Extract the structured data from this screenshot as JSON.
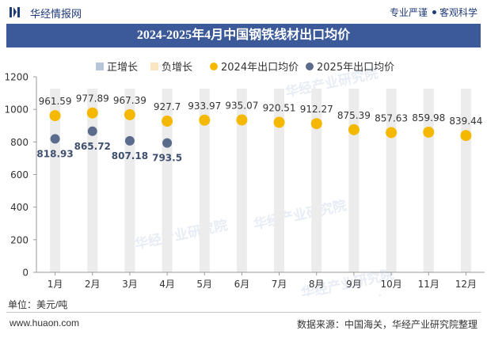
{
  "header": {
    "brand": "华经情报网",
    "tagline_left": "专业严谨",
    "tagline_right": "客观科学"
  },
  "title": "2024-2025年4月中国钢铁线材出口均价",
  "unit_label": "单位：美元/吨",
  "footer": {
    "site": "www.huaon.com",
    "source": "数据来源：中国海关，华经产业研究院整理"
  },
  "watermark": "华经产业研究院",
  "watermark_url": "www.huaon.com",
  "colors": {
    "title_bar": "#3c5a9a",
    "brand": "#1f3a78",
    "series_2024": "#f5b800",
    "series_2025": "#5b6b8c",
    "positive": "#b7c4da",
    "negative": "#fbe6c2",
    "bar_bg": "#ececec"
  },
  "chart_data": {
    "type": "scatter",
    "categories": [
      "1月",
      "2月",
      "3月",
      "4月",
      "5月",
      "6月",
      "7月",
      "8月",
      "9月",
      "10月",
      "11月",
      "12月"
    ],
    "legend": [
      {
        "key": "positive",
        "name": "正增长",
        "marker": "square"
      },
      {
        "key": "negative",
        "name": "负增长",
        "marker": "square"
      },
      {
        "key": "s2024",
        "name": "2024年出口均价",
        "marker": "circle"
      },
      {
        "key": "s2025",
        "name": "2025年出口均价",
        "marker": "circle"
      }
    ],
    "series": [
      {
        "name": "2024年出口均价",
        "values": [
          961.59,
          977.89,
          967.39,
          927.7,
          933.97,
          935.07,
          920.51,
          912.27,
          875.39,
          857.63,
          859.98,
          839.44
        ]
      },
      {
        "name": "2025年出口均价",
        "values": [
          818.93,
          865.72,
          807.18,
          793.5
        ]
      }
    ],
    "labels_2024": [
      "961.59",
      "977.89",
      "967.39",
      "927.7",
      "933.97",
      "935.07",
      "920.51",
      "912.27",
      "875.39",
      "857.63",
      "859.98",
      "839.44"
    ],
    "labels_2025": [
      "818.93",
      "865.72",
      "807.18",
      "793.5"
    ],
    "yticks": [
      "0",
      "200",
      "400",
      "600",
      "800",
      "1000",
      "1200"
    ],
    "ylim": [
      0,
      1200
    ],
    "grid": false,
    "legend_position": "top"
  }
}
